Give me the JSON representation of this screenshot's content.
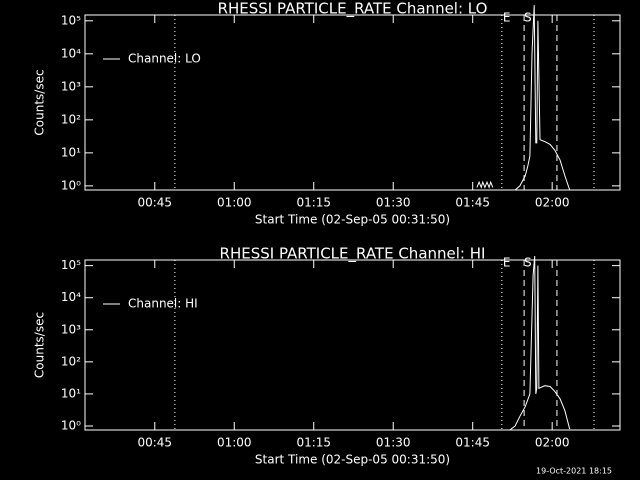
{
  "chart_data": [
    {
      "type": "line",
      "title": "RHESSI PARTICLE_RATE Channel: LO",
      "x_label": "Start Time (02-Sep-05 00:31:50)",
      "y_label": "Counts/sec",
      "log_y": true,
      "xlim": [
        31.83,
        132.8
      ],
      "ylim": [
        0.75,
        150000
      ],
      "xticks": [
        {
          "value": 45,
          "label": "00:45"
        },
        {
          "value": 60,
          "label": "01:00"
        },
        {
          "value": 75,
          "label": "01:15"
        },
        {
          "value": 90,
          "label": "01:30"
        },
        {
          "value": 105,
          "label": "01:45"
        },
        {
          "value": 120,
          "label": "02:00"
        }
      ],
      "yticks": [
        {
          "value": 1,
          "label": "10⁰"
        },
        {
          "value": 10,
          "label": "10¹"
        },
        {
          "value": 100,
          "label": "10²"
        },
        {
          "value": 1000,
          "label": "10³"
        },
        {
          "value": 10000,
          "label": "10⁴"
        },
        {
          "value": 100000,
          "label": "10⁵"
        }
      ],
      "vlines": [
        {
          "x": 48.8,
          "style": "dotted"
        },
        {
          "x": 110.5,
          "style": "dotted"
        },
        {
          "x": 114.7,
          "style": "dashed"
        },
        {
          "x": 120.9,
          "style": "dashed"
        },
        {
          "x": 127.9,
          "style": "dotted"
        }
      ],
      "annotations": [
        {
          "text": "E",
          "x": 111.4
        },
        {
          "text": "S",
          "x": 115.4
        }
      ],
      "series": [
        {
          "name": "Channel: LO",
          "color": "#ffffff",
          "x": [
            105.8,
            106.2,
            106.6,
            106.9,
            107.3,
            107.7,
            108.1,
            108.4,
            108.8,
            null,
            113.0,
            113.9,
            114.9,
            115.4,
            115.8,
            116.2,
            116.6,
            116.9,
            117.1,
            117.3,
            117.7,
            118.6,
            119.6,
            120.5,
            121.5,
            122.4,
            123.3
          ],
          "values": [
            0.9,
            1.3,
            0.9,
            1.3,
            0.9,
            1.3,
            0.9,
            1.3,
            0.9,
            null,
            0.75,
            1,
            2,
            4,
            8,
            10000,
            300000,
            20,
            20,
            100000,
            25,
            22,
            18,
            12,
            6,
            2,
            0.75
          ]
        }
      ]
    },
    {
      "type": "line",
      "title": "RHESSI PARTICLE_RATE Channel: HI",
      "x_label": "Start Time (02-Sep-05 00:31:50)",
      "y_label": "Counts/sec",
      "log_y": true,
      "xlim": [
        31.83,
        132.8
      ],
      "ylim": [
        0.75,
        150000
      ],
      "xticks": [
        {
          "value": 45,
          "label": "00:45"
        },
        {
          "value": 60,
          "label": "01:00"
        },
        {
          "value": 75,
          "label": "01:15"
        },
        {
          "value": 90,
          "label": "01:30"
        },
        {
          "value": 105,
          "label": "01:45"
        },
        {
          "value": 120,
          "label": "02:00"
        }
      ],
      "yticks": [
        {
          "value": 1,
          "label": "10⁰"
        },
        {
          "value": 10,
          "label": "10¹"
        },
        {
          "value": 100,
          "label": "10²"
        },
        {
          "value": 1000,
          "label": "10³"
        },
        {
          "value": 10000,
          "label": "10⁴"
        },
        {
          "value": 100000,
          "label": "10⁵"
        }
      ],
      "vlines": [
        {
          "x": 48.8,
          "style": "dotted"
        },
        {
          "x": 110.5,
          "style": "dotted"
        },
        {
          "x": 114.7,
          "style": "dashed"
        },
        {
          "x": 120.9,
          "style": "dashed"
        },
        {
          "x": 127.9,
          "style": "dotted"
        }
      ],
      "annotations": [
        {
          "text": "E",
          "x": 111.4
        },
        {
          "text": "S",
          "x": 115.4
        }
      ],
      "series": [
        {
          "name": "Channel: HI",
          "color": "#ffffff",
          "x": [
            112.0,
            113.0,
            113.9,
            114.9,
            115.8,
            116.4,
            116.7,
            116.9,
            117.1,
            117.3,
            117.5,
            118.6,
            119.6,
            120.5,
            121.5,
            122.4,
            123.3
          ],
          "values": [
            0.75,
            1,
            2,
            4,
            10,
            50000,
            200000,
            10,
            15,
            100000,
            15,
            18,
            17,
            12,
            7,
            3,
            0.8
          ]
        }
      ]
    }
  ],
  "footer": "19-Oct-2021 18:15"
}
